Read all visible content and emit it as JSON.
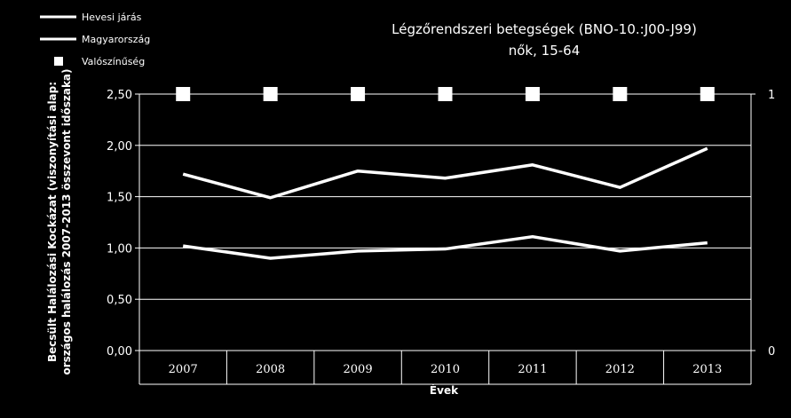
{
  "chart_data": {
    "type": "line",
    "title": "Légzőrendszeri betegségek (BNO-10.:J00-J99)",
    "subtitle": "nők, 15-64",
    "xlabel": "Évek",
    "ylabel_line1": "Becsült Halálozási Kockázat (viszonyítási alap:",
    "ylabel_line2": "országos halálozás 2007-2013 összevont időszaka)",
    "categories": [
      "2007",
      "2008",
      "2009",
      "2010",
      "2011",
      "2012",
      "2013"
    ],
    "ylim": [
      0,
      2.5
    ],
    "yticks": [
      "0,00",
      "0,50",
      "1,00",
      "1,50",
      "2,00",
      "2,50"
    ],
    "y2lim": [
      0,
      1
    ],
    "y2ticks": [
      "0",
      "1"
    ],
    "grid": true,
    "legend_position": "top-left",
    "series": [
      {
        "name": "Hevesi járás",
        "kind": "line",
        "axis": "left",
        "color": "#ffffff",
        "values": [
          1.72,
          1.49,
          1.75,
          1.68,
          1.81,
          1.59,
          1.97
        ]
      },
      {
        "name": "Magyarország",
        "kind": "line",
        "axis": "left",
        "color": "#ffffff",
        "values": [
          1.02,
          0.9,
          0.97,
          0.99,
          1.11,
          0.97,
          1.05
        ]
      },
      {
        "name": "Valószínűség",
        "kind": "marker",
        "axis": "right",
        "color": "#ffffff",
        "values": [
          1,
          1,
          1,
          1,
          1,
          1,
          1
        ]
      }
    ]
  }
}
